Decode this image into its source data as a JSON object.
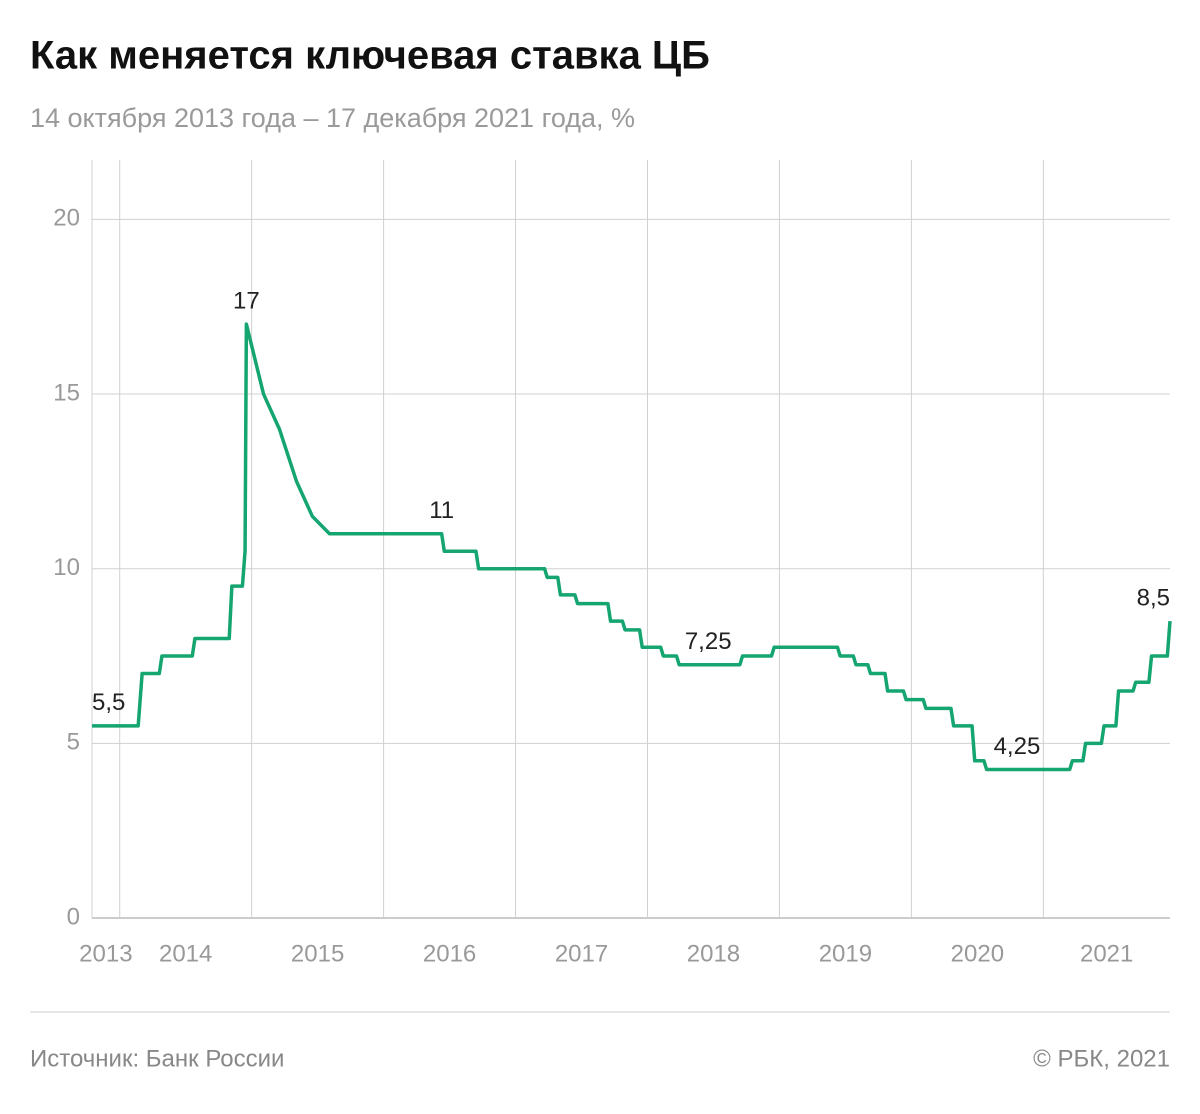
{
  "chart_data": {
    "type": "line",
    "title": "Как меняется ключевая ставка ЦБ",
    "subtitle": "14 октября 2013 года – 17 декабря 2021 года, %",
    "source": "Источник: Банк России",
    "credit": "© РБК, 2021",
    "x": [
      2013.79,
      2014.14,
      2014.17,
      2014.3,
      2014.32,
      2014.55,
      2014.57,
      2014.83,
      2014.85,
      2014.93,
      2014.95,
      2014.96,
      2015.09,
      2015.21,
      2015.34,
      2015.46,
      2015.59,
      2016.44,
      2016.46,
      2016.7,
      2016.72,
      2017.22,
      2017.24,
      2017.32,
      2017.34,
      2017.45,
      2017.47,
      2017.7,
      2017.72,
      2017.81,
      2017.83,
      2017.94,
      2017.96,
      2018.1,
      2018.12,
      2018.22,
      2018.24,
      2018.46,
      2018.7,
      2018.72,
      2018.94,
      2018.96,
      2019.44,
      2019.46,
      2019.56,
      2019.58,
      2019.67,
      2019.69,
      2019.8,
      2019.82,
      2019.94,
      2019.96,
      2020.09,
      2020.11,
      2020.3,
      2020.32,
      2020.46,
      2020.48,
      2020.55,
      2020.57,
      2020.8,
      2021.2,
      2021.22,
      2021.3,
      2021.32,
      2021.44,
      2021.46,
      2021.55,
      2021.57,
      2021.68,
      2021.7,
      2021.8,
      2021.82,
      2021.94,
      2021.96
    ],
    "series": [
      {
        "name": "Ключевая ставка",
        "color": "#15a571",
        "values": [
          5.5,
          5.5,
          7,
          7,
          7.5,
          7.5,
          8,
          8,
          9.5,
          9.5,
          10.5,
          17,
          15,
          14,
          12.5,
          11.5,
          11,
          11,
          10.5,
          10.5,
          10,
          10,
          9.75,
          9.75,
          9.25,
          9.25,
          9,
          9,
          8.5,
          8.5,
          8.25,
          8.25,
          7.75,
          7.75,
          7.5,
          7.5,
          7.25,
          7.25,
          7.25,
          7.5,
          7.5,
          7.75,
          7.75,
          7.5,
          7.5,
          7.25,
          7.25,
          7,
          7,
          6.5,
          6.5,
          6.25,
          6.25,
          6,
          6,
          5.5,
          5.5,
          4.5,
          4.5,
          4.25,
          4.25,
          4.25,
          4.5,
          4.5,
          5,
          5,
          5.5,
          5.5,
          6.5,
          6.5,
          6.75,
          6.75,
          7.5,
          7.5,
          8.5
        ],
        "value_labels": [
          "5,5",
          null,
          null,
          null,
          null,
          null,
          null,
          null,
          null,
          null,
          null,
          "17",
          null,
          null,
          null,
          null,
          null,
          "11",
          null,
          null,
          null,
          null,
          null,
          null,
          null,
          null,
          null,
          null,
          null,
          null,
          null,
          null,
          null,
          null,
          null,
          null,
          null,
          "7,25",
          null,
          null,
          null,
          null,
          null,
          null,
          null,
          null,
          null,
          null,
          null,
          null,
          null,
          null,
          null,
          null,
          null,
          null,
          null,
          null,
          null,
          null,
          "4,25",
          null,
          null,
          null,
          null,
          null,
          null,
          null,
          null,
          null,
          null,
          null,
          null,
          null,
          "8,5"
        ]
      }
    ],
    "xlim": [
      2013.79,
      2021.96
    ],
    "xticks": [
      2014,
      2015,
      2016,
      2017,
      2018,
      2019,
      2020,
      2021
    ],
    "x_band_labels": [
      "2013",
      "2014",
      "2015",
      "2016",
      "2017",
      "2018",
      "2019",
      "2020",
      "2021"
    ],
    "ylim": [
      0,
      21.7
    ],
    "yticks": [
      0,
      5,
      10,
      15,
      20
    ],
    "grid": true
  }
}
